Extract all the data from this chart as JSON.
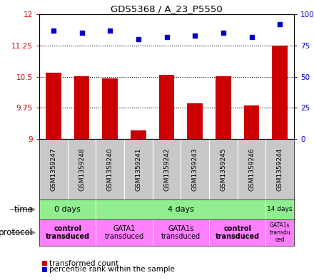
{
  "title": "GDS5368 / A_23_P5550",
  "samples": [
    "GSM1359247",
    "GSM1359248",
    "GSM1359240",
    "GSM1359241",
    "GSM1359242",
    "GSM1359243",
    "GSM1359245",
    "GSM1359246",
    "GSM1359244"
  ],
  "bar_values": [
    10.6,
    10.5,
    10.45,
    9.2,
    10.55,
    9.85,
    10.5,
    9.8,
    11.25
  ],
  "dot_values": [
    87,
    85,
    87,
    80,
    82,
    83,
    85,
    82,
    92
  ],
  "bar_color": "#CC0000",
  "dot_color": "#0000CC",
  "ylim_left": [
    9,
    12
  ],
  "ylim_right": [
    0,
    100
  ],
  "yticks_left": [
    9,
    9.75,
    10.5,
    11.25,
    12
  ],
  "ytick_labels_left": [
    "9",
    "9.75",
    "10.5",
    "11.25",
    "12"
  ],
  "yticks_right": [
    0,
    25,
    50,
    75,
    100
  ],
  "ytick_labels_right": [
    "0",
    "25",
    "50",
    "75",
    "100%"
  ],
  "grid_values": [
    9.75,
    10.5,
    11.25
  ],
  "time_groups": [
    {
      "label": "0 days",
      "start": 0,
      "end": 2,
      "color": "#90EE90"
    },
    {
      "label": "4 days",
      "start": 2,
      "end": 8,
      "color": "#90EE90"
    },
    {
      "label": "14 days",
      "start": 8,
      "end": 9,
      "color": "#90EE90"
    }
  ],
  "protocol_groups": [
    {
      "label": "control\ntransduced",
      "start": 0,
      "end": 2,
      "color": "#FF80FF",
      "bold": true
    },
    {
      "label": "GATA1\ntransduced",
      "start": 2,
      "end": 4,
      "color": "#FF80FF",
      "bold": false
    },
    {
      "label": "GATA1s\ntransduced",
      "start": 4,
      "end": 6,
      "color": "#FF80FF",
      "bold": false
    },
    {
      "label": "control\ntransduced",
      "start": 6,
      "end": 8,
      "color": "#FF80FF",
      "bold": true
    },
    {
      "label": "GATA1s\ntransdu\nced",
      "start": 8,
      "end": 9,
      "color": "#FF80FF",
      "bold": false
    }
  ],
  "samples_bg": "#C8C8C8",
  "background_color": "#ffffff"
}
